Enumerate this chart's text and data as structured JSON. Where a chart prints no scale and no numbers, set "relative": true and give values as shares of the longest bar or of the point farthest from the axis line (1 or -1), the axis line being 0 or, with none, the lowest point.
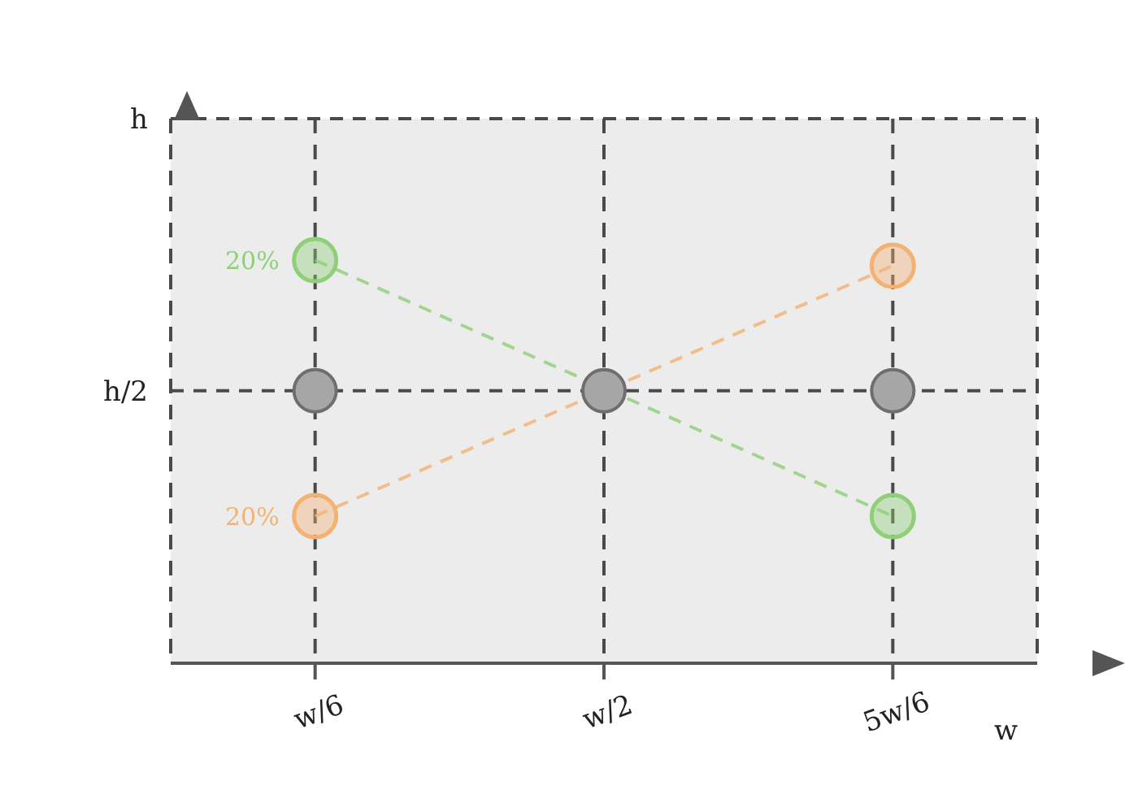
{
  "chart_data": {
    "type": "scatter",
    "relative": true,
    "categories": [
      "w/6",
      "w/2",
      "5w/6"
    ],
    "xlabel": "w",
    "grid": "x",
    "marker": "circle",
    "series": [
      {
        "type": "line",
        "line_style": "dashed",
        "color": "#8fcf78",
        "values": [
          1,
          null,
          0.365
        ]
      },
      {
        "type": "line",
        "line_style": "dashed",
        "color": "#f4b272",
        "values": [
          0.365,
          null,
          0.986
        ]
      },
      {
        "color": "#a6a6a6",
        "values": [
          0.676,
          0.676,
          0.676
        ]
      }
    ],
    "ref_lines": [
      {
        "axis": "y",
        "value": 0.676,
        "label": "h/2"
      },
      {
        "axis": "y",
        "value": 1.351,
        "label": "h"
      }
    ],
    "annotations": [
      {
        "text": "20%",
        "x": "w/6",
        "y": 1
      },
      {
        "text": "20%",
        "x": "w/6",
        "y": 0.365
      }
    ]
  }
}
